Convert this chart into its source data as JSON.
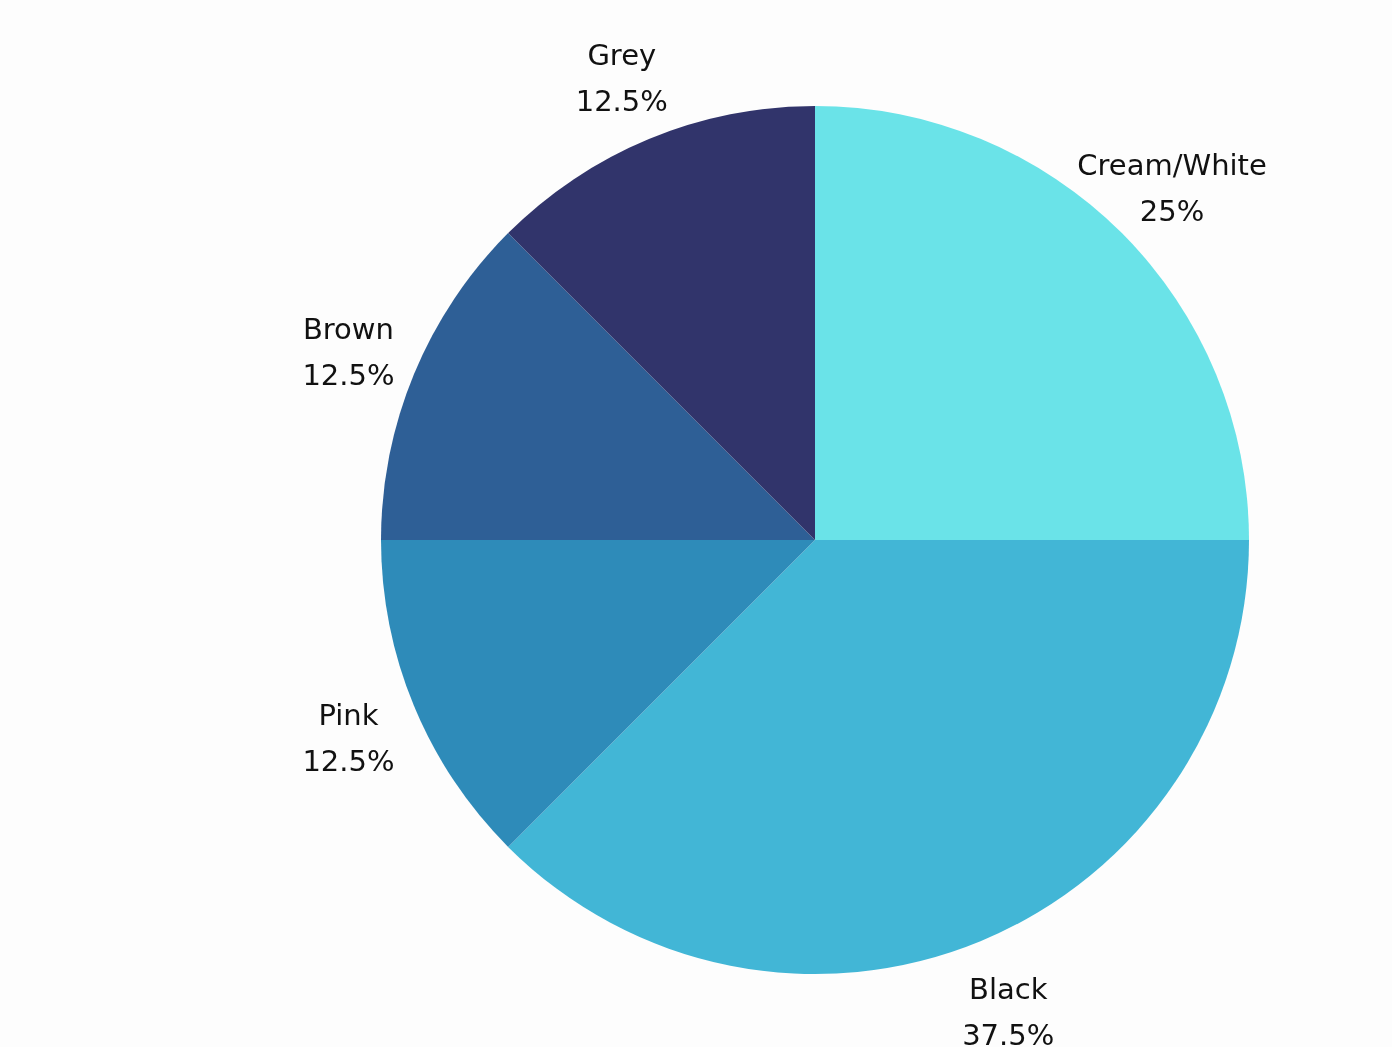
{
  "chart_data": {
    "type": "pie",
    "categories": [
      "Cream/White",
      "Black",
      "Pink",
      "Brown",
      "Grey"
    ],
    "values": [
      25,
      37.5,
      12.5,
      12.5,
      12.5
    ],
    "colors": [
      "#6ae3e8",
      "#42b6d6",
      "#2e8bb9",
      "#2e5f96",
      "#31346b"
    ],
    "value_labels": [
      "25%",
      "37.5%",
      "12.5%",
      "12.5%",
      "12.5%"
    ]
  }
}
